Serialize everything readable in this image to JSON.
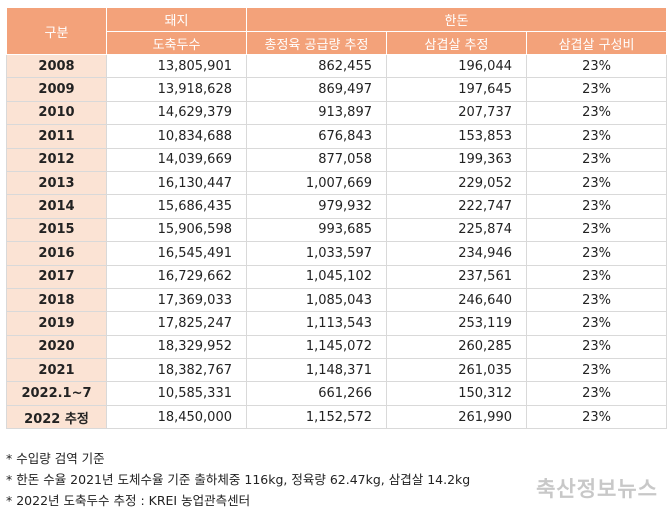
{
  "header": {
    "category": "구분",
    "pig_group": "돼지",
    "hanwoo_group": "한돈",
    "slaughter": "도축두수",
    "total_supply": "총정육 공급량 추정",
    "belly_estimate": "삼겹살 추정",
    "belly_ratio": "삼겹살  구성비"
  },
  "rows": [
    {
      "year": "2008",
      "slaughter": "13,805,901",
      "supply": "862,455",
      "belly": "196,044",
      "ratio": "23%"
    },
    {
      "year": "2009",
      "slaughter": "13,918,628",
      "supply": "869,497",
      "belly": "197,645",
      "ratio": "23%"
    },
    {
      "year": "2010",
      "slaughter": "14,629,379",
      "supply": "913,897",
      "belly": "207,737",
      "ratio": "23%"
    },
    {
      "year": "2011",
      "slaughter": "10,834,688",
      "supply": "676,843",
      "belly": "153,853",
      "ratio": "23%"
    },
    {
      "year": "2012",
      "slaughter": "14,039,669",
      "supply": "877,058",
      "belly": "199,363",
      "ratio": "23%"
    },
    {
      "year": "2013",
      "slaughter": "16,130,447",
      "supply": "1,007,669",
      "belly": "229,052",
      "ratio": "23%"
    },
    {
      "year": "2014",
      "slaughter": "15,686,435",
      "supply": "979,932",
      "belly": "222,747",
      "ratio": "23%"
    },
    {
      "year": "2015",
      "slaughter": "15,906,598",
      "supply": "993,685",
      "belly": "225,874",
      "ratio": "23%"
    },
    {
      "year": "2016",
      "slaughter": "16,545,491",
      "supply": "1,033,597",
      "belly": "234,946",
      "ratio": "23%"
    },
    {
      "year": "2017",
      "slaughter": "16,729,662",
      "supply": "1,045,102",
      "belly": "237,561",
      "ratio": "23%"
    },
    {
      "year": "2018",
      "slaughter": "17,369,033",
      "supply": "1,085,043",
      "belly": "246,640",
      "ratio": "23%"
    },
    {
      "year": "2019",
      "slaughter": "17,825,247",
      "supply": "1,113,543",
      "belly": "253,119",
      "ratio": "23%"
    },
    {
      "year": "2020",
      "slaughter": "18,329,952",
      "supply": "1,145,072",
      "belly": "260,285",
      "ratio": "23%"
    },
    {
      "year": "2021",
      "slaughter": "18,382,767",
      "supply": "1,148,371",
      "belly": "261,035",
      "ratio": "23%"
    },
    {
      "year": "2022.1~7",
      "slaughter": "10,585,331",
      "supply": "661,266",
      "belly": "150,312",
      "ratio": "23%"
    },
    {
      "year": "2022 추정",
      "slaughter": "18,450,000",
      "supply": "1,152,572",
      "belly": "261,990",
      "ratio": "23%"
    }
  ],
  "notes": [
    "* 수입량 검역 기준",
    "* 한돈 수율 2021년 도체수율 기준 출하체중 116kg, 정육량 62.47kg, 삼겹살 14.2kg",
    "* 2022년 도축두수 추정 : KREI 농업관측센터"
  ],
  "watermark": "축산정보뉴스"
}
